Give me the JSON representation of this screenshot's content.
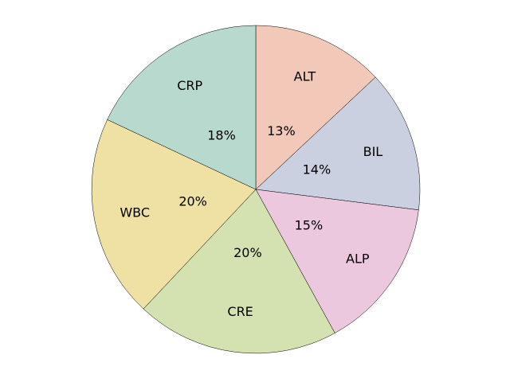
{
  "chart_data": {
    "type": "pie",
    "categories": [
      "ALT",
      "BIL",
      "ALP",
      "CRE",
      "WBC",
      "CRP"
    ],
    "values": [
      13,
      14,
      15,
      20,
      20,
      18
    ],
    "pct_labels": [
      "13%",
      "14%",
      "15%",
      "20%",
      "20%",
      "18%"
    ],
    "colors": [
      "#f2c8b8",
      "#cad0df",
      "#ebc8de",
      "#d3e2b0",
      "#eee1a3",
      "#b8d9ce"
    ],
    "start": "top",
    "direction": "clockwise",
    "legend": "none"
  }
}
